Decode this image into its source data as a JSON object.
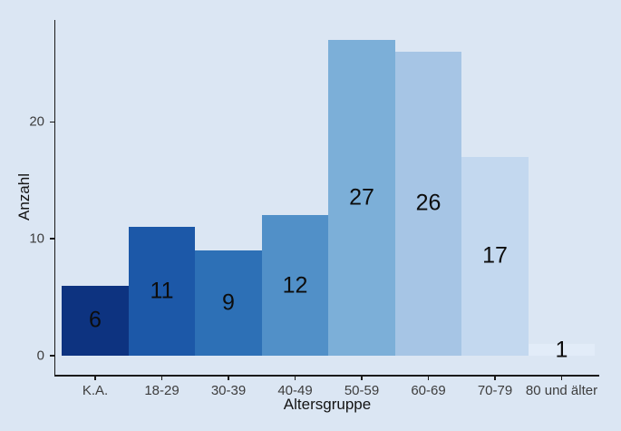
{
  "chart_data": {
    "type": "bar",
    "title": "",
    "xlabel": "Altersgruppe",
    "ylabel": "Anzahl",
    "categories": [
      "K.A.",
      "18-29",
      "30-39",
      "40-49",
      "50-59",
      "60-69",
      "70-79",
      "80 und älter"
    ],
    "values": [
      6,
      11,
      9,
      12,
      27,
      26,
      17,
      1
    ],
    "value_labels": [
      "6",
      "11",
      "9",
      "12",
      "27",
      "26",
      "17",
      "1"
    ],
    "bar_colors": [
      "#0d3380",
      "#1c58a8",
      "#2d70b6",
      "#5190c8",
      "#7cafd8",
      "#a6c5e5",
      "#c3d8ef",
      "#e2ecf8"
    ],
    "yticks": [
      0,
      10,
      20
    ],
    "ytick_labels": [
      "0",
      "10",
      "20"
    ],
    "ylim": [
      0,
      28.4
    ],
    "grid": "off",
    "legend": "none",
    "background_color": "#dbe6f3",
    "axis_line_color": "#1a1a1a",
    "tick_label_color": "#3d3d3d",
    "axis_title_color": "#141414",
    "bar_label_color": "#0d0d0d"
  }
}
